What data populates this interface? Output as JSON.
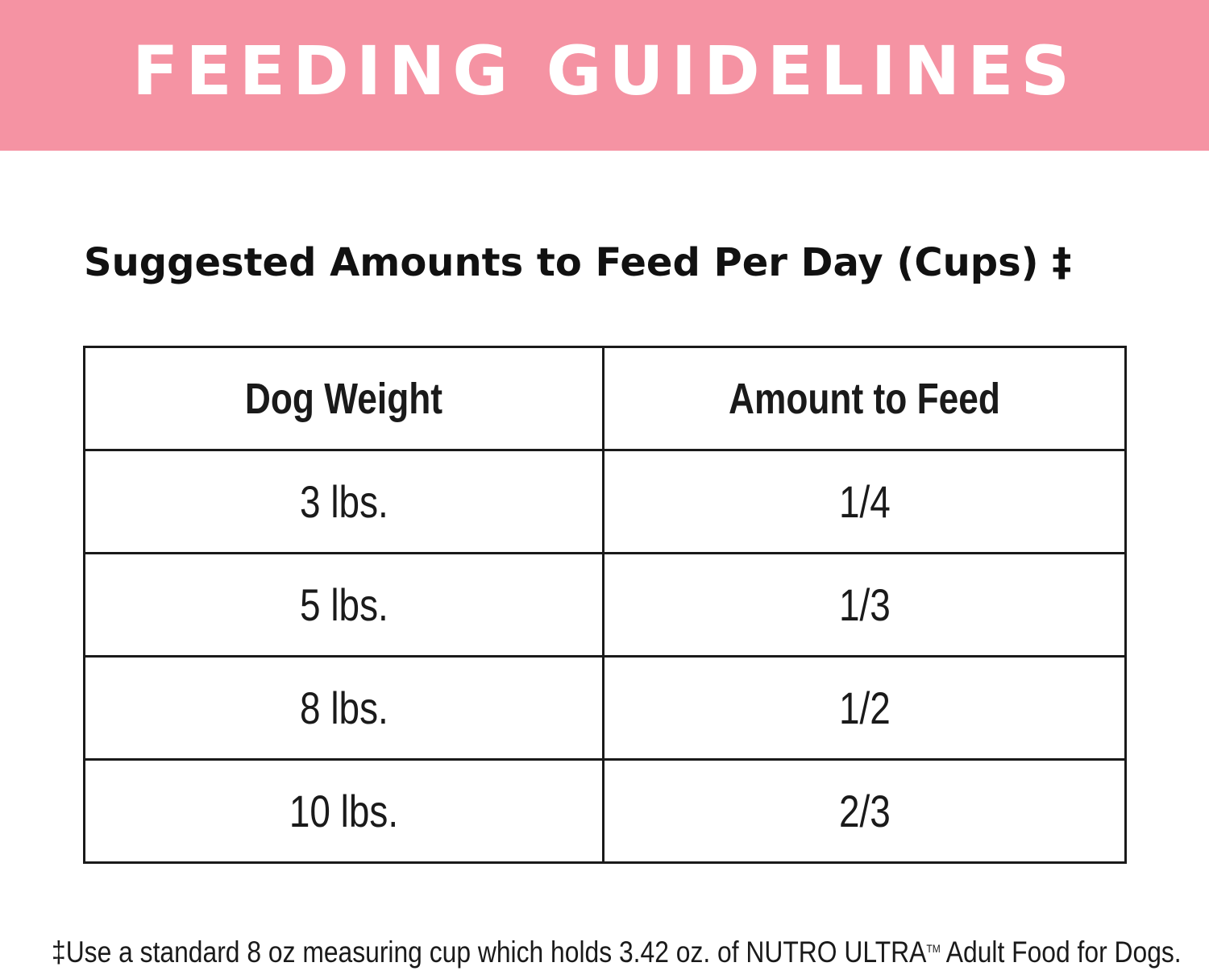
{
  "banner": {
    "title": "FEEDING GUIDELINES",
    "background_color": "#f593a3",
    "text_color": "#ffffff"
  },
  "subtitle": "Suggested Amounts to Feed Per Day (Cups) ‡",
  "table": {
    "headers": [
      "Dog Weight",
      "Amount to Feed"
    ],
    "rows": [
      [
        "3 lbs.",
        "1/4"
      ],
      [
        "5 lbs.",
        "1/3"
      ],
      [
        "8 lbs.",
        "1/2"
      ],
      [
        "10 lbs.",
        "2/3"
      ]
    ]
  },
  "footnote": {
    "before_tm": "‡Use a standard 8 oz measuring cup which holds 3.42 oz. of NUTRO ULTRA",
    "tm": "TM",
    "after_tm": " Adult Food for Dogs."
  }
}
